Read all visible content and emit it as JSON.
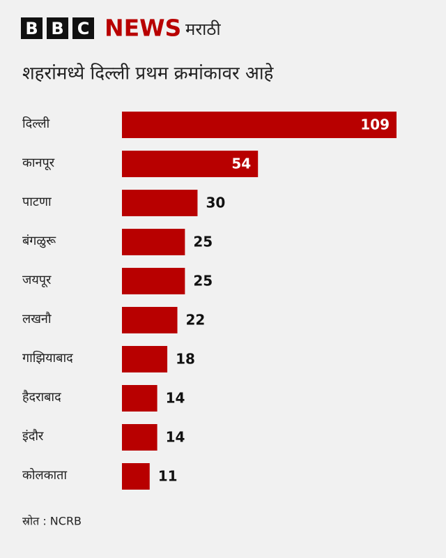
{
  "header": {
    "letters": [
      "B",
      "B",
      "C"
    ],
    "news": "NEWS",
    "language": "मराठी"
  },
  "chart_data": {
    "type": "bar",
    "orientation": "horizontal",
    "title": "शहरांमध्ये दिल्ली प्रथम क्रमांकावर आहे",
    "categories": [
      "दिल्ली",
      "कानपूर",
      "पाटणा",
      "बंगळुरू",
      "जयपूर",
      "लखनौ",
      "गाझियाबाद",
      "हैदराबाद",
      "इंदौर",
      "कोलकाता"
    ],
    "values": [
      109,
      54,
      30,
      25,
      25,
      22,
      18,
      14,
      14,
      11
    ],
    "color": "#b80000",
    "source": "स्रोत : NCRB"
  }
}
